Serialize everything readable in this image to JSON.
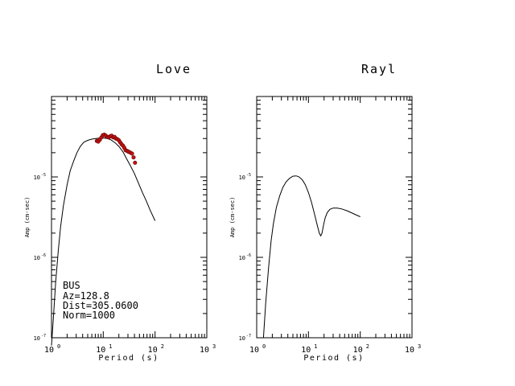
{
  "chart_data": [
    {
      "type": "line",
      "title": "Love",
      "xlabel": "Period (s)",
      "ylabel": "Amp (cm-sec)",
      "xscale": "log",
      "yscale": "log",
      "xlim": [
        1,
        1000
      ],
      "ylim": [
        1e-07,
        0.0001
      ],
      "xticks": [
        {
          "base": "10",
          "exp": "0",
          "value": 1
        },
        {
          "base": "10",
          "exp": "1",
          "value": 10
        },
        {
          "base": "10",
          "exp": "2",
          "value": 100
        },
        {
          "base": "10",
          "exp": "3",
          "value": 1000
        }
      ],
      "yticks": [
        {
          "base": "10",
          "exp": "-5",
          "value": 1e-05
        },
        {
          "base": "10",
          "exp": "-6",
          "value": 1e-06
        },
        {
          "base": "10",
          "exp": "-7",
          "value": 1e-07
        }
      ],
      "annotation": [
        "BUS",
        "Az=128.8",
        "Dist=305.0600",
        "Norm=1000"
      ],
      "series": [
        {
          "style": "line",
          "color": "#000000",
          "x": [
            1.0,
            1.1,
            1.2,
            1.35,
            1.5,
            1.7,
            2.0,
            2.3,
            2.7,
            3.1,
            3.6,
            4.2,
            5.0,
            6.0,
            7.2,
            8.5,
            10.0,
            12.0,
            14.0,
            17.0,
            20.0,
            24.0,
            28.0,
            33.0,
            40.0,
            48.0,
            57.0,
            68.0,
            80.0,
            100.0
          ],
          "y": [
            8e-08,
            2e-07,
            4.8e-07,
            1.2e-06,
            2.4e-06,
            4.4e-06,
            8e-06,
            1.2e-05,
            1.6e-05,
            2e-05,
            2.4e-05,
            2.7e-05,
            2.85e-05,
            2.95e-05,
            3e-05,
            3.05e-05,
            3.05e-05,
            3e-05,
            2.9e-05,
            2.65e-05,
            2.4e-05,
            2.05e-05,
            1.7e-05,
            1.4e-05,
            1.1e-05,
            8.3e-06,
            6.4e-06,
            5e-06,
            3.9e-06,
            2.85e-06
          ]
        },
        {
          "style": "scatter",
          "color": "#cc1111",
          "x": [
            7.5,
            8.0,
            8.6,
            9.2,
            9.8,
            10.5,
            11.2,
            12.0,
            12.8,
            13.6,
            14.5,
            15.5,
            16.5,
            17.5,
            18.7,
            20.0,
            21.2,
            22.5,
            24.0,
            25.5,
            27.0,
            29.0,
            31.0,
            33.5,
            36.0,
            38.5,
            41.0
          ],
          "y": [
            2.8e-05,
            2.75e-05,
            2.9e-05,
            3.1e-05,
            3.3e-05,
            3.35e-05,
            3.25e-05,
            3.15e-05,
            3.1e-05,
            3.2e-05,
            3.25e-05,
            3.1e-05,
            3.15e-05,
            3e-05,
            2.95e-05,
            2.85e-05,
            2.7e-05,
            2.55e-05,
            2.45e-05,
            2.3e-05,
            2.15e-05,
            2.1e-05,
            2.05e-05,
            2e-05,
            1.95e-05,
            1.75e-05,
            1.5e-05
          ]
        }
      ]
    },
    {
      "type": "line",
      "title": "Rayl",
      "xlabel": "Period (s)",
      "ylabel": "Amp (cm-sec)",
      "xscale": "log",
      "yscale": "log",
      "xlim": [
        1,
        1000
      ],
      "ylim": [
        1e-07,
        0.0001
      ],
      "xticks": [
        {
          "base": "10",
          "exp": "0",
          "value": 1
        },
        {
          "base": "10",
          "exp": "1",
          "value": 10
        },
        {
          "base": "10",
          "exp": "2",
          "value": 100
        },
        {
          "base": "10",
          "exp": "3",
          "value": 1000
        }
      ],
      "yticks": [
        {
          "base": "10",
          "exp": "-5",
          "value": 1e-05
        },
        {
          "base": "10",
          "exp": "-6",
          "value": 1e-06
        },
        {
          "base": "10",
          "exp": "-7",
          "value": 1e-07
        }
      ],
      "series": [
        {
          "style": "line",
          "color": "#000000",
          "x": [
            1.35,
            1.5,
            1.7,
            1.9,
            2.1,
            2.4,
            2.8,
            3.2,
            3.7,
            4.3,
            5.0,
            5.8,
            6.6,
            7.6,
            8.7,
            10.0,
            11.5,
            13.0,
            14.8,
            16.2,
            17.3,
            18.3,
            19.5,
            21.0,
            23.0,
            26.0,
            30.0,
            36.0,
            44.0,
            55.0,
            70.0,
            85.0,
            100.0
          ],
          "y": [
            1e-07,
            2.8e-07,
            7.5e-07,
            1.6e-06,
            2.6e-06,
            4.2e-06,
            5.9e-06,
            7.4e-06,
            8.7e-06,
            9.6e-06,
            1.02e-05,
            1.03e-05,
            1e-05,
            9.2e-06,
            8e-06,
            6.4e-06,
            4.8e-06,
            3.5e-06,
            2.5e-06,
            2e-06,
            1.85e-06,
            2e-06,
            2.5e-06,
            3.1e-06,
            3.6e-06,
            3.95e-06,
            4.1e-06,
            4.1e-06,
            4e-06,
            3.8e-06,
            3.55e-06,
            3.35e-06,
            3.2e-06
          ]
        }
      ]
    }
  ]
}
